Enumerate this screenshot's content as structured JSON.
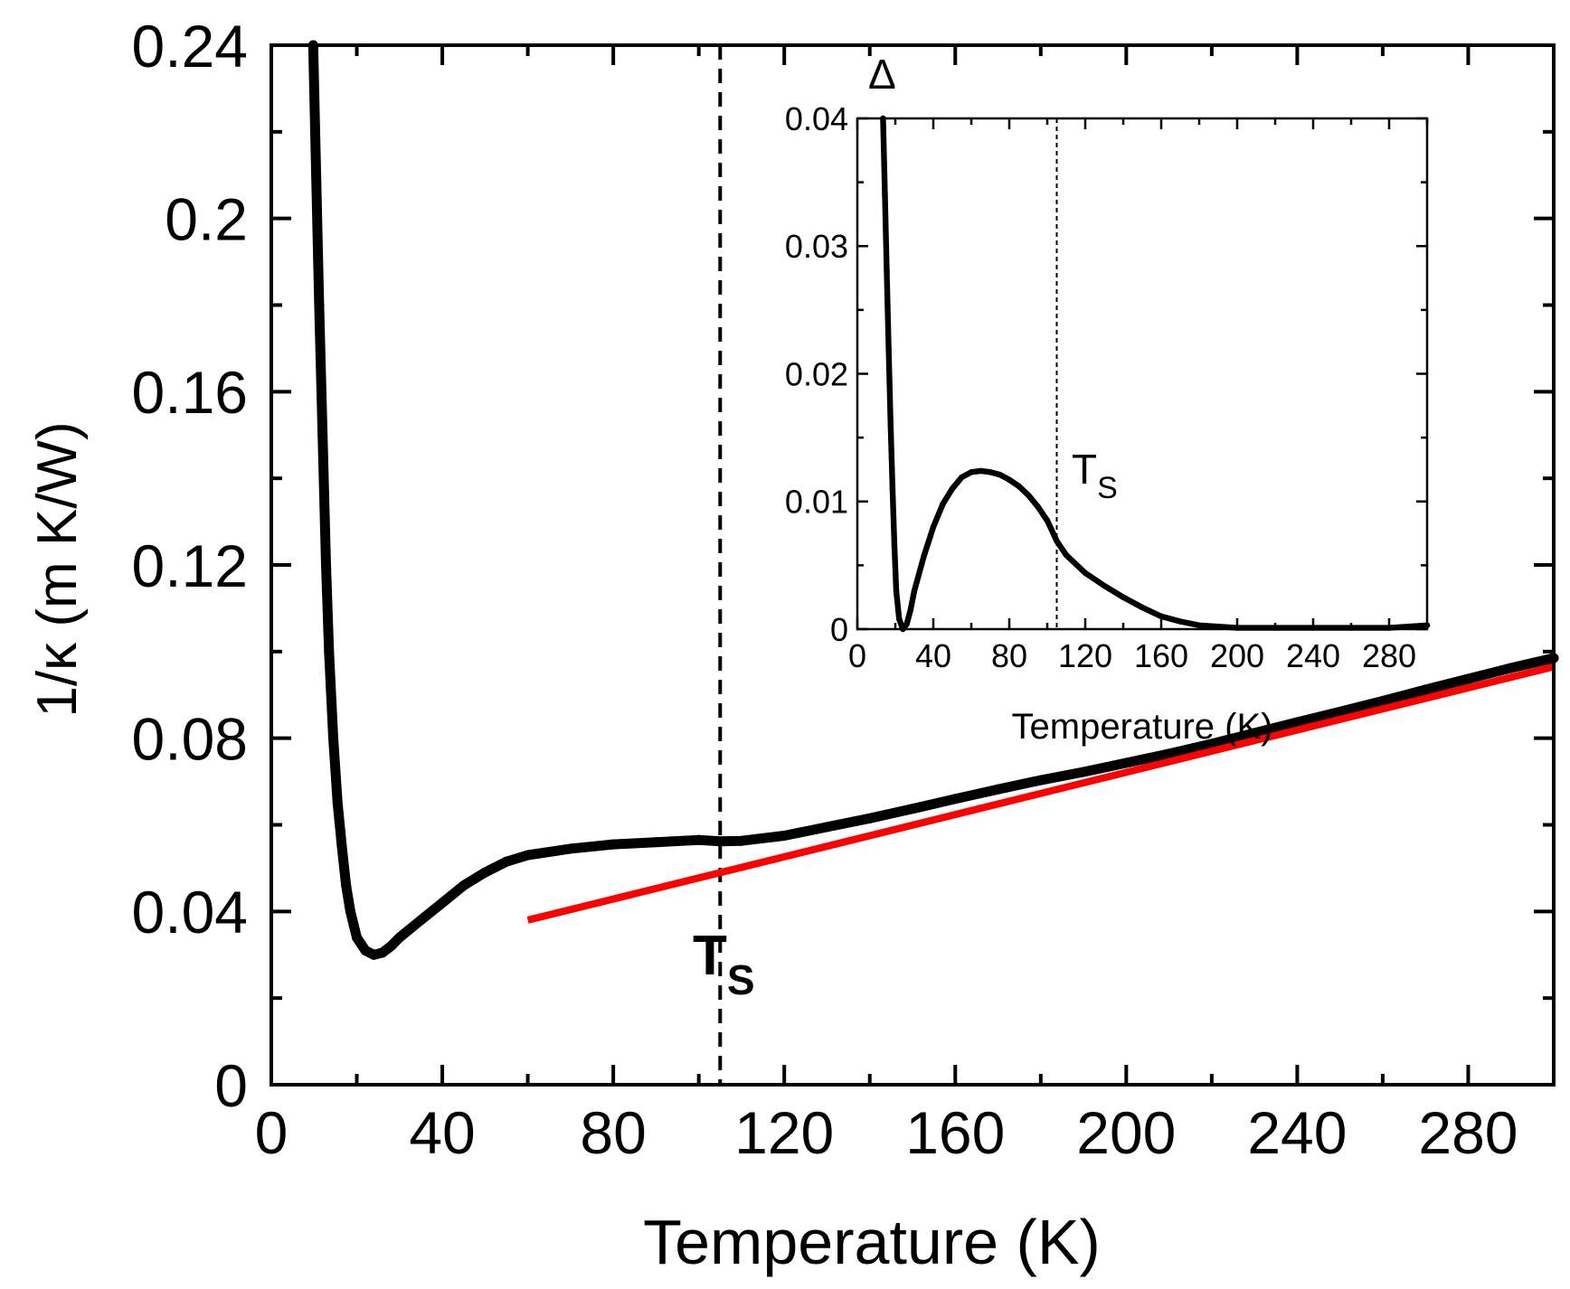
{
  "colors": {
    "data": "#000000",
    "fit": "#ff0000",
    "marker_line": "#000000",
    "background": "#ffffff"
  },
  "chart_data": [
    {
      "type": "scatter",
      "title": "",
      "xlabel": "Temperature (K)",
      "ylabel": "1/κ (m K/W)",
      "xlim": [
        0,
        300
      ],
      "ylim": [
        0,
        0.24
      ],
      "x_ticks": [
        "0",
        "40",
        "80",
        "120",
        "160",
        "200",
        "240",
        "280"
      ],
      "y_ticks": [
        "0",
        "0.04",
        "0.08",
        "0.12",
        "0.16",
        "0.2",
        "0.24"
      ],
      "grid": false,
      "series": [
        {
          "style": "points",
          "color": "#000000",
          "points": [
            [
              9.8,
              0.24
            ],
            [
              10.5,
              0.21
            ],
            [
              11.2,
              0.18
            ],
            [
              12,
              0.15
            ],
            [
              12.8,
              0.12
            ],
            [
              13.5,
              0.1
            ],
            [
              14.5,
              0.08
            ],
            [
              15.5,
              0.065
            ],
            [
              16.5,
              0.055
            ],
            [
              17.5,
              0.046
            ],
            [
              18.5,
              0.04
            ],
            [
              20,
              0.034
            ],
            [
              22,
              0.031
            ],
            [
              24,
              0.03
            ],
            [
              26,
              0.0305
            ],
            [
              28,
              0.032
            ],
            [
              30,
              0.034
            ],
            [
              35,
              0.038
            ],
            [
              40,
              0.042
            ],
            [
              45,
              0.046
            ],
            [
              50,
              0.049
            ],
            [
              55,
              0.0515
            ],
            [
              60,
              0.053
            ],
            [
              70,
              0.0545
            ],
            [
              80,
              0.0555
            ],
            [
              90,
              0.056
            ],
            [
              100,
              0.0565
            ],
            [
              105,
              0.0562
            ],
            [
              110,
              0.0563
            ],
            [
              120,
              0.0575
            ],
            [
              130,
              0.0595
            ],
            [
              140,
              0.0615
            ],
            [
              150,
              0.0637
            ],
            [
              160,
              0.066
            ],
            [
              170,
              0.0682
            ],
            [
              180,
              0.0703
            ],
            [
              190,
              0.0722
            ],
            [
              200,
              0.0743
            ],
            [
              210,
              0.0764
            ],
            [
              220,
              0.0787
            ],
            [
              230,
              0.0812
            ],
            [
              240,
              0.0837
            ],
            [
              250,
              0.0861
            ],
            [
              260,
              0.0886
            ],
            [
              270,
              0.0912
            ],
            [
              280,
              0.0937
            ],
            [
              290,
              0.0962
            ],
            [
              300,
              0.0985
            ]
          ]
        },
        {
          "style": "line",
          "color": "#ff0000",
          "points": [
            [
              60,
              0.038
            ],
            [
              300,
              0.0965
            ]
          ]
        }
      ],
      "annotations": [
        {
          "type": "vline",
          "x": 105,
          "style": "dashed"
        },
        {
          "type": "label",
          "text": "T",
          "subscript": "S",
          "x": 105
        }
      ]
    },
    {
      "type": "scatter",
      "title": "",
      "panel_label": "Δ",
      "xlabel": "Temperature (K)",
      "ylabel": "",
      "xlim": [
        0,
        300
      ],
      "ylim": [
        0,
        0.04
      ],
      "x_ticks": [
        "0",
        "40",
        "80",
        "120",
        "160",
        "200",
        "240",
        "280"
      ],
      "y_ticks": [
        "0",
        "0.01",
        "0.02",
        "0.03",
        "0.04"
      ],
      "grid": false,
      "series": [
        {
          "style": "points",
          "color": "#000000",
          "points": [
            [
              13.5,
              0.04
            ],
            [
              14.5,
              0.034
            ],
            [
              15.5,
              0.028
            ],
            [
              16.5,
              0.022
            ],
            [
              17.5,
              0.016
            ],
            [
              18.5,
              0.011
            ],
            [
              19.5,
              0.0065
            ],
            [
              20.5,
              0.003
            ],
            [
              22,
              0.0008
            ],
            [
              24,
              0.0
            ],
            [
              26,
              0.0004
            ],
            [
              28,
              0.0015
            ],
            [
              30,
              0.003
            ],
            [
              35,
              0.0057
            ],
            [
              40,
              0.008
            ],
            [
              45,
              0.0098
            ],
            [
              50,
              0.011
            ],
            [
              55,
              0.0119
            ],
            [
              60,
              0.0123
            ],
            [
              65,
              0.0124
            ],
            [
              70,
              0.0123
            ],
            [
              75,
              0.0121
            ],
            [
              80,
              0.0117
            ],
            [
              85,
              0.0112
            ],
            [
              90,
              0.0105
            ],
            [
              95,
              0.0096
            ],
            [
              100,
              0.0085
            ],
            [
              105,
              0.0069
            ],
            [
              110,
              0.0058
            ],
            [
              120,
              0.0044
            ],
            [
              130,
              0.0034
            ],
            [
              140,
              0.0025
            ],
            [
              150,
              0.0017
            ],
            [
              160,
              0.001
            ],
            [
              170,
              0.0006
            ],
            [
              180,
              0.0003
            ],
            [
              190,
              0.0002
            ],
            [
              200,
              0.0001
            ],
            [
              220,
              0.0001
            ],
            [
              240,
              0.0001
            ],
            [
              260,
              0.0001
            ],
            [
              280,
              0.0001
            ],
            [
              300,
              0.0003
            ]
          ]
        }
      ],
      "annotations": [
        {
          "type": "vline",
          "x": 105,
          "style": "dotted"
        },
        {
          "type": "label",
          "text": "T",
          "subscript": "S",
          "x": 105
        }
      ]
    }
  ]
}
